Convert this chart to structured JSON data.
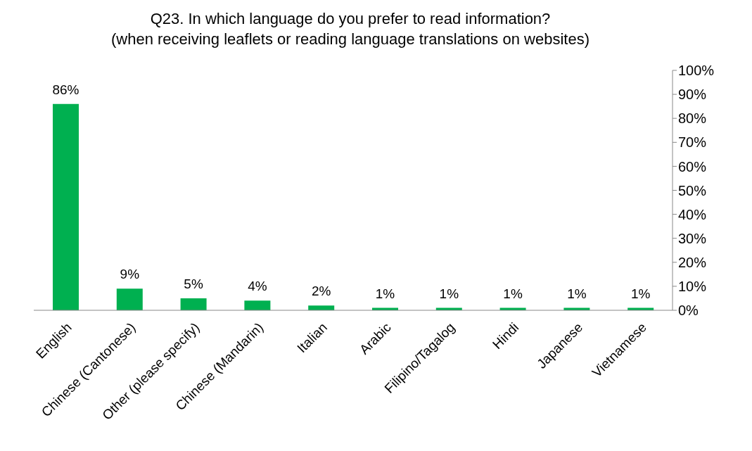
{
  "chart_data": {
    "type": "bar",
    "title": "Q23. In which language do you prefer to read information?\n(when receiving leaflets or reading language translations on websites)",
    "categories": [
      "English",
      "Chinese (Cantonese)",
      "Other (please specify)",
      "Chinese (Mandarin)",
      "Italian",
      "Arabic",
      "Filipino/Tagalog",
      "Hindi",
      "Japanese",
      "Vietnamese"
    ],
    "values": [
      86,
      9,
      5,
      4,
      2,
      1,
      1,
      1,
      1,
      1
    ],
    "value_labels": [
      "86%",
      "9%",
      "5%",
      "4%",
      "2%",
      "1%",
      "1%",
      "1%",
      "1%",
      "1%"
    ],
    "color": "#00b050",
    "ylim": [
      0,
      100
    ],
    "yticks": [
      {
        "value": 0,
        "label": "0%"
      },
      {
        "value": 10,
        "label": "10%"
      },
      {
        "value": 20,
        "label": "20%"
      },
      {
        "value": 30,
        "label": "30%"
      },
      {
        "value": 40,
        "label": "40%"
      },
      {
        "value": 50,
        "label": "50%"
      },
      {
        "value": 60,
        "label": "60%"
      },
      {
        "value": 70,
        "label": "70%"
      },
      {
        "value": 80,
        "label": "80%"
      },
      {
        "value": 90,
        "label": "90%"
      },
      {
        "value": 100,
        "label": "100%"
      }
    ],
    "grid": false,
    "legend": false
  }
}
